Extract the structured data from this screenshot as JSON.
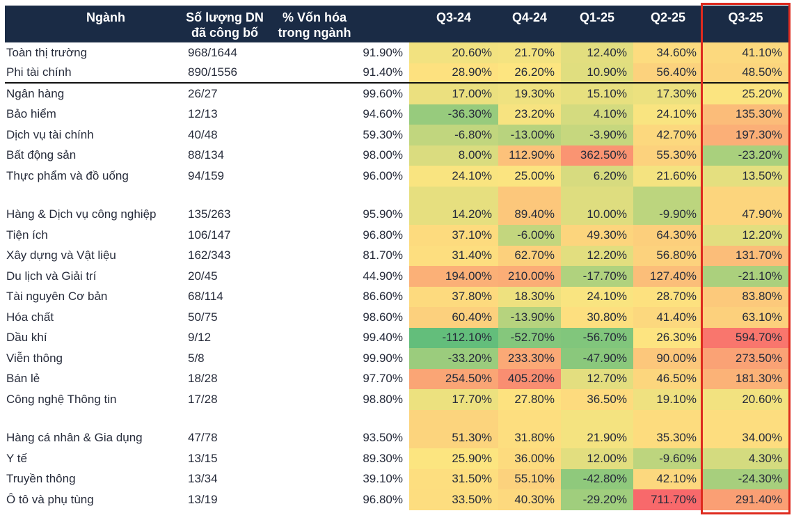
{
  "table": {
    "header": {
      "sector": "Ngành",
      "count_line1": "Số lượng DN",
      "count_line2": "đã công bố",
      "cap_line1": "% Vốn hóa",
      "cap_line2": "trong ngành"
    },
    "header_bg": "#1A2B45",
    "header_text_color": "#FFFFFF",
    "body_text_color": "#262B3A",
    "divider_color": "#101010",
    "highlight_border_color": "#DE2A1E"
  },
  "chart_data": {
    "type": "heatmap",
    "unit": "%",
    "columns": [
      "Q3-24",
      "Q4-24",
      "Q1-25",
      "Q2-25",
      "Q3-25"
    ],
    "highlighted_column": "Q3-25",
    "color_scale": {
      "min_color": "#63BE7B",
      "mid_color": "#FDE580",
      "max_color": "#F8696B",
      "min_value": -112.1,
      "mid_value": 26.2,
      "max_value": 711.7,
      "note": "green=low/negative, yellow=median, red=high"
    },
    "rows": [
      {
        "sector": "Toàn thị trường",
        "disclosed": "968/1644",
        "cap_share": 91.9,
        "values": [
          20.6,
          21.7,
          12.4,
          34.6,
          41.1
        ]
      },
      {
        "sector": "Phi tài chính",
        "disclosed": "890/1556",
        "cap_share": 91.4,
        "values": [
          28.9,
          26.2,
          10.9,
          56.4,
          48.5
        ],
        "divider_below": true
      },
      {
        "sector": "Ngân hàng",
        "disclosed": "26/27",
        "cap_share": 99.6,
        "values": [
          17.0,
          19.3,
          15.1,
          17.3,
          25.2
        ]
      },
      {
        "sector": "Bảo hiểm",
        "disclosed": "12/13",
        "cap_share": 94.6,
        "values": [
          -36.3,
          23.2,
          4.1,
          24.1,
          135.3
        ]
      },
      {
        "sector": "Dịch vụ tài chính",
        "disclosed": "40/48",
        "cap_share": 59.3,
        "values": [
          -6.8,
          -13.0,
          -3.9,
          42.7,
          197.3
        ]
      },
      {
        "sector": "Bất động sản",
        "disclosed": "88/134",
        "cap_share": 98.0,
        "values": [
          8.0,
          112.9,
          362.5,
          55.3,
          -23.2
        ]
      },
      {
        "sector": "Thực phẩm và đồ uống",
        "disclosed": "94/159",
        "cap_share": 96.0,
        "values": [
          24.1,
          25.0,
          6.2,
          21.6,
          13.5
        ]
      },
      {
        "spacer": true
      },
      {
        "sector": "Hàng & Dịch vụ công nghiệp",
        "disclosed": "135/263",
        "cap_share": 95.9,
        "values": [
          14.2,
          89.4,
          10.0,
          -9.9,
          47.9
        ]
      },
      {
        "sector": "Tiện ích",
        "disclosed": "106/147",
        "cap_share": 96.8,
        "values": [
          37.1,
          -6.0,
          49.3,
          64.3,
          12.2
        ]
      },
      {
        "sector": "Xây dựng và Vật liệu",
        "disclosed": "162/343",
        "cap_share": 81.7,
        "values": [
          31.4,
          62.7,
          12.2,
          56.8,
          131.7
        ]
      },
      {
        "sector": "Du lịch và Giải trí",
        "disclosed": "20/45",
        "cap_share": 44.9,
        "values": [
          194.0,
          210.0,
          -17.7,
          127.4,
          -21.1
        ]
      },
      {
        "sector": "Tài nguyên Cơ bản",
        "disclosed": "68/114",
        "cap_share": 86.6,
        "values": [
          37.8,
          18.3,
          24.1,
          28.7,
          83.8
        ]
      },
      {
        "sector": "Hóa chất",
        "disclosed": "50/75",
        "cap_share": 98.6,
        "values": [
          60.4,
          -13.9,
          30.8,
          41.4,
          63.1
        ]
      },
      {
        "sector": "Dầu khí",
        "disclosed": "9/12",
        "cap_share": 99.4,
        "values": [
          -112.1,
          -52.7,
          -56.7,
          26.3,
          594.7
        ]
      },
      {
        "sector": "Viễn thông",
        "disclosed": "5/8",
        "cap_share": 99.9,
        "values": [
          -33.2,
          233.3,
          -47.9,
          90.0,
          273.5
        ]
      },
      {
        "sector": "Bán lẻ",
        "disclosed": "18/28",
        "cap_share": 97.7,
        "values": [
          254.5,
          405.2,
          12.7,
          46.5,
          181.3
        ]
      },
      {
        "sector": "Công nghệ Thông tin",
        "disclosed": "17/28",
        "cap_share": 98.8,
        "values": [
          17.7,
          27.8,
          36.5,
          19.1,
          20.6
        ]
      },
      {
        "spacer": true
      },
      {
        "sector": "Hàng cá nhân & Gia dụng",
        "disclosed": "47/78",
        "cap_share": 93.5,
        "values": [
          51.3,
          31.8,
          21.9,
          35.3,
          34.0
        ]
      },
      {
        "sector": "Y tế",
        "disclosed": "13/15",
        "cap_share": 89.3,
        "values": [
          25.9,
          36.0,
          12.0,
          -9.6,
          4.3
        ]
      },
      {
        "sector": "Truyền thông",
        "disclosed": "13/34",
        "cap_share": 39.1,
        "values": [
          31.5,
          55.1,
          -42.8,
          42.1,
          -24.3
        ]
      },
      {
        "sector": "Ô tô và phụ tùng",
        "disclosed": "13/19",
        "cap_share": 96.8,
        "values": [
          33.5,
          40.3,
          -29.2,
          711.7,
          291.4
        ]
      }
    ]
  }
}
